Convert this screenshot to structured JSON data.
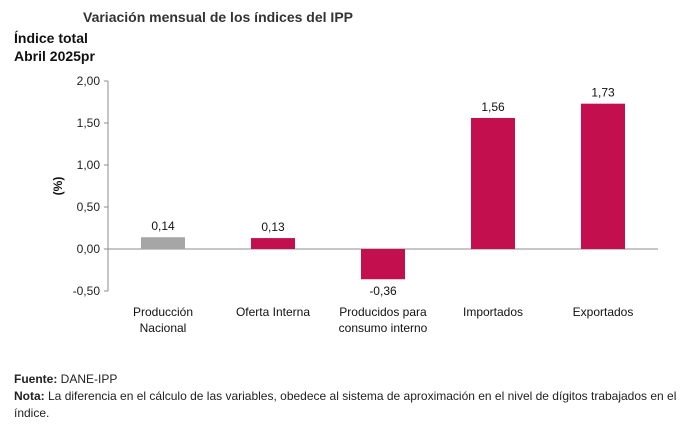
{
  "header": {
    "title": "Variación mensual de los índices del IPP",
    "subtitle_line1": "Índice total",
    "subtitle_line2": "Abril 2025pr"
  },
  "footer": {
    "source_label": "Fuente:",
    "source_text": " DANE-IPP",
    "note_label": "Nota:",
    "note_text": " La diferencia en el cálculo de las variables, obedece al sistema de aproximación en el nivel de dígitos trabajados en el índice."
  },
  "chart_data": {
    "type": "bar",
    "title": "Variación mensual de los índices del IPP",
    "ylabel": "(%)",
    "xlabel": "",
    "ylim": [
      -0.5,
      2.0
    ],
    "yticks": [
      2.0,
      1.5,
      1.0,
      0.5,
      0.0,
      -0.5
    ],
    "ytick_labels": [
      "2,00",
      "1,50",
      "1,00",
      "0,50",
      "0,00",
      "-0,50"
    ],
    "grid": false,
    "legend": "none",
    "categories": [
      [
        "Producción",
        "Nacional"
      ],
      [
        "Oferta Interna"
      ],
      [
        "Producidos para",
        "consumo interno"
      ],
      [
        "Importados"
      ],
      [
        "Exportados"
      ]
    ],
    "values": [
      0.14,
      0.13,
      -0.36,
      1.56,
      1.73
    ],
    "value_labels": [
      "0,14",
      "0,13",
      "-0,36",
      "1,56",
      "1,73"
    ],
    "colors": [
      "#a6a6a6",
      "#c40f4f",
      "#c40f4f",
      "#c40f4f",
      "#c40f4f"
    ]
  }
}
